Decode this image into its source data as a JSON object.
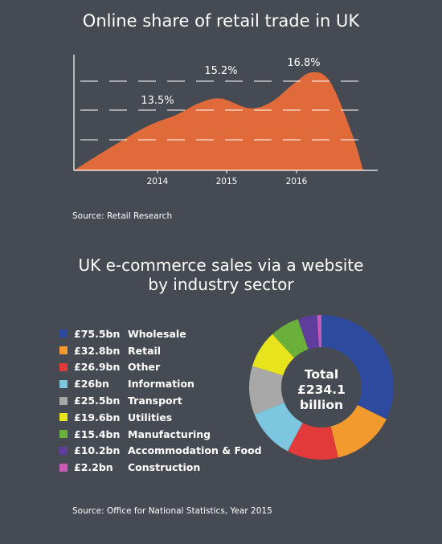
{
  "chart_data": [
    {
      "type": "area",
      "title": "Online share of retail trade in UK",
      "xlabel": "",
      "ylabel": "",
      "x": [
        2013.0,
        2013.5,
        2014.0,
        2014.4,
        2014.7,
        2015.0,
        2015.4,
        2015.7,
        2016.0,
        2016.25,
        2016.5,
        2016.8,
        2016.95
      ],
      "values": [
        10.8,
        12.2,
        13.5,
        14.2,
        14.9,
        15.2,
        14.6,
        15.0,
        16.1,
        16.8,
        16.2,
        13.0,
        10.8
      ],
      "annotations": [
        {
          "x": 2014.0,
          "y": 13.5,
          "text": "13.5%"
        },
        {
          "x": 2015.0,
          "y": 15.2,
          "text": "15.2%"
        },
        {
          "x": 2016.25,
          "y": 16.8,
          "text": "16.8%"
        }
      ],
      "xticks": [
        "2014",
        "2015",
        "2016"
      ],
      "grid": true,
      "color": "#e06a3a",
      "source": "Source: Retail Research"
    },
    {
      "type": "pie",
      "title": "UK e-commerce sales via a website by industry sector",
      "title_line1": "UK e-commerce sales via a website",
      "title_line2": "by industry sector",
      "center_line1": "Total",
      "center_line2": "£234.1",
      "center_line3": "billion",
      "slices": [
        {
          "label": "Wholesale",
          "value_text": "£75.5bn",
          "value": 75.5,
          "color": "#2e4a9e"
        },
        {
          "label": "Retail",
          "value_text": "£32.8bn",
          "value": 32.8,
          "color": "#f39a2f"
        },
        {
          "label": "Other",
          "value_text": "£26.9bn",
          "value": 26.9,
          "color": "#e23a3a"
        },
        {
          "label": "Information",
          "value_text": "£26bn",
          "value": 26.0,
          "color": "#7cc6e0"
        },
        {
          "label": "Transport",
          "value_text": "£25.5bn",
          "value": 25.5,
          "color": "#a8a8a8"
        },
        {
          "label": "Utilities",
          "value_text": "£19.6bn",
          "value": 19.6,
          "color": "#e8e41c"
        },
        {
          "label": "Manufacturing",
          "value_text": "£15.4bn",
          "value": 15.4,
          "color": "#6ab03a"
        },
        {
          "label": "Accommodation & Food",
          "value_text": "£10.2bn",
          "value": 10.2,
          "color": "#5e3d9c"
        },
        {
          "label": "Construction",
          "value_text": "£2.2bn",
          "value": 2.2,
          "color": "#c95ab8"
        }
      ],
      "source": "Source: Office for National Statistics, Year 2015"
    }
  ]
}
